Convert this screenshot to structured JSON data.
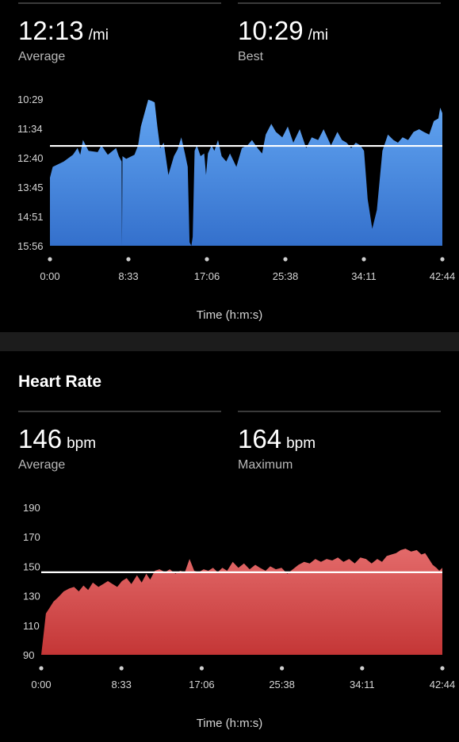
{
  "pace": {
    "average_value": "12:13",
    "average_unit": "/mi",
    "average_label": "Average",
    "best_value": "10:29",
    "best_unit": "/mi",
    "best_label": "Best",
    "x_title": "Time (h:m:s)"
  },
  "heart_rate": {
    "title": "Heart Rate",
    "average_value": "146",
    "average_unit": "bpm",
    "average_label": "Average",
    "max_value": "164",
    "max_unit": "bpm",
    "max_label": "Maximum",
    "x_title": "Time (h:m:s)"
  },
  "colors": {
    "pace_top": "#63a6f2",
    "pace_bottom": "#3470cc",
    "hr_top": "#e36a6a",
    "hr_bottom": "#c43636",
    "background": "#000000",
    "divider": "#1c1c1c"
  },
  "chart_data": [
    {
      "type": "area",
      "name": "pace",
      "xlabel": "Time (h:m:s)",
      "ylabel": "",
      "x_ticks": [
        "0:00",
        "8:33",
        "17:06",
        "25:38",
        "34:11",
        "42:44"
      ],
      "y_ticks": [
        "10:29",
        "11:34",
        "12:40",
        "13:45",
        "14:51",
        "15:56"
      ],
      "y_inverted": true,
      "ylim_min_per_mile": [
        10.48,
        15.93
      ],
      "reference_line": {
        "label": "Average",
        "value_min_per_mile": 12.22
      },
      "x_minutes": [
        0,
        0.3,
        1.5,
        2.5,
        3.0,
        3.3,
        3.6,
        4.2,
        5.2,
        5.6,
        6.3,
        7.2,
        7.5,
        7.8,
        7.85,
        7.9,
        8.3,
        9.2,
        9.6,
        9.9,
        10.3,
        10.7,
        11.1,
        11.4,
        11.7,
        12.0,
        12.4,
        12.9,
        13.5,
        13.9,
        14.3,
        14.7,
        15.0,
        15.2,
        15.4,
        15.55,
        15.75,
        16.0,
        16.4,
        16.8,
        17.0,
        17.2,
        17.6,
        17.9,
        18.3,
        18.7,
        19.2,
        19.6,
        20.3,
        20.9,
        21.5,
        22.0,
        22.6,
        23.1,
        23.5,
        24.1,
        24.6,
        25.3,
        25.9,
        26.5,
        27.2,
        27.9,
        28.5,
        29.2,
        29.8,
        30.6,
        31.3,
        31.8,
        32.3,
        32.8,
        33.3,
        33.8,
        34.2,
        34.6,
        35.1,
        35.6,
        36.2,
        36.8,
        37.4,
        37.9,
        38.4,
        39.0,
        39.6,
        40.2,
        40.7,
        41.3,
        41.8,
        42.3,
        42.5,
        42.73
      ],
      "y_min_per_mile": [
        13.4,
        13.0,
        12.8,
        12.55,
        12.3,
        12.55,
        12.0,
        12.4,
        12.45,
        12.2,
        12.55,
        12.3,
        12.6,
        12.8,
        15.93,
        12.6,
        12.7,
        12.55,
        12.2,
        11.5,
        11.0,
        10.5,
        10.55,
        10.6,
        11.5,
        12.3,
        12.1,
        13.3,
        12.6,
        12.35,
        11.9,
        12.5,
        13.0,
        15.8,
        15.93,
        15.6,
        12.4,
        12.2,
        12.6,
        12.5,
        13.3,
        12.5,
        12.2,
        12.4,
        12.0,
        12.6,
        12.8,
        12.5,
        13.0,
        12.3,
        12.2,
        12.0,
        12.3,
        12.5,
        11.8,
        11.4,
        11.7,
        11.9,
        11.5,
        12.1,
        11.6,
        12.3,
        11.9,
        12.0,
        11.6,
        12.2,
        11.7,
        12.0,
        12.1,
        12.3,
        12.1,
        12.2,
        12.4,
        14.2,
        15.3,
        14.6,
        12.4,
        11.8,
        12.0,
        12.1,
        11.9,
        12.0,
        11.7,
        11.6,
        11.7,
        11.8,
        11.3,
        11.2,
        10.8,
        11.0
      ]
    },
    {
      "type": "area",
      "name": "heart_rate",
      "xlabel": "Time (h:m:s)",
      "ylabel": "",
      "x_ticks": [
        "0:00",
        "8:33",
        "17:06",
        "25:38",
        "34:11",
        "42:44"
      ],
      "y_ticks": [
        "90",
        "110",
        "130",
        "150",
        "170",
        "190"
      ],
      "ylim": [
        90,
        190
      ],
      "reference_line": {
        "label": "Average",
        "value": 146
      },
      "x_minutes": [
        0,
        0.25,
        0.5,
        0.9,
        1.3,
        1.8,
        2.4,
        3.0,
        3.5,
        4.0,
        4.5,
        5.0,
        5.5,
        6.1,
        6.6,
        7.1,
        7.6,
        8.1,
        8.6,
        9.1,
        9.6,
        10.2,
        10.7,
        11.2,
        11.6,
        12.1,
        12.6,
        13.2,
        13.7,
        14.3,
        14.8,
        15.3,
        15.8,
        16.3,
        16.8,
        17.3,
        17.8,
        18.3,
        18.8,
        19.3,
        19.8,
        20.4,
        21.0,
        21.6,
        22.2,
        22.8,
        23.3,
        23.9,
        24.4,
        25.0,
        25.6,
        26.2,
        26.8,
        27.4,
        28.0,
        28.6,
        29.2,
        29.8,
        30.4,
        31.0,
        31.6,
        32.2,
        32.8,
        33.4,
        34.0,
        34.6,
        35.2,
        35.8,
        36.3,
        36.8,
        37.3,
        37.8,
        38.3,
        38.8,
        39.4,
        40.0,
        40.5,
        40.9,
        41.3,
        41.7,
        42.1,
        42.4,
        42.73
      ],
      "y_values": [
        90,
        104,
        118,
        122,
        126,
        129,
        133,
        135,
        136,
        133,
        137,
        134,
        139,
        136,
        138,
        140,
        138,
        136,
        140,
        142,
        138,
        144,
        139,
        145,
        141,
        147,
        148,
        146,
        148,
        145,
        147,
        146,
        155,
        147,
        146,
        148,
        147,
        149,
        146,
        149,
        147,
        153,
        149,
        152,
        148,
        151,
        149,
        147,
        150,
        148,
        149,
        145,
        148,
        151,
        153,
        152,
        155,
        153,
        155,
        154,
        156,
        153,
        155,
        152,
        156,
        155,
        152,
        155,
        153,
        157,
        158,
        159,
        161,
        162,
        160,
        161,
        158,
        159,
        155,
        151,
        149,
        147,
        149
      ]
    }
  ]
}
